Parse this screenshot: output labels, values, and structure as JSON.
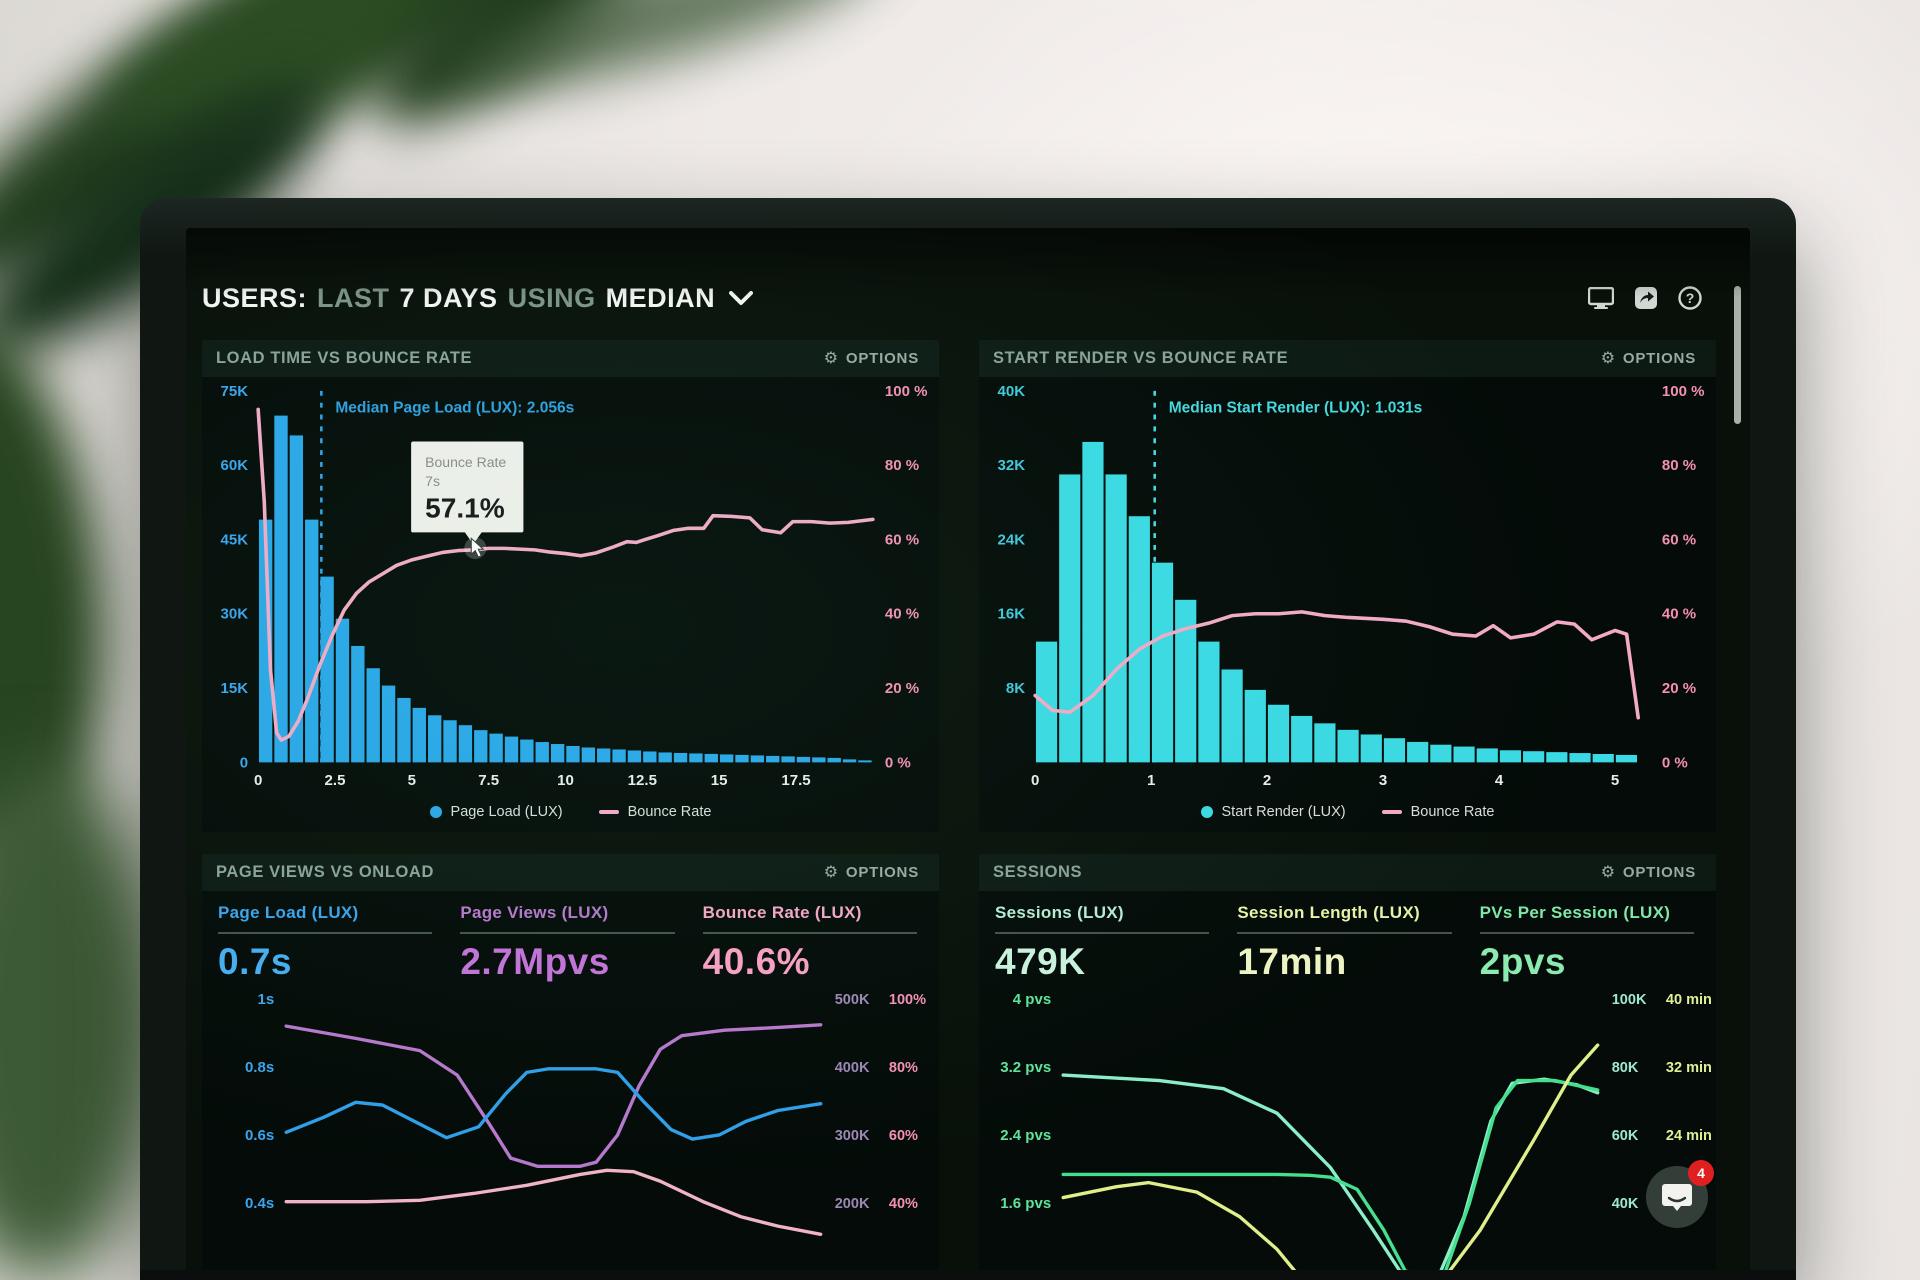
{
  "header": {
    "t1": "USERS:",
    "t2": "LAST",
    "t3": "7 DAYS",
    "t4": "USING",
    "t5": "MEDIAN",
    "icons": [
      "display-icon",
      "share-icon",
      "help-icon"
    ]
  },
  "chat": {
    "badge": "4"
  },
  "colors": {
    "blue_bar": "#2aa7e8",
    "cyan_bar": "#3bd9e3",
    "pink_line": "#f2aac6",
    "axis_pink": "#f58fb5",
    "axis_blue": "#3ba4ec",
    "axis_cyan": "#41c6dc",
    "tick_white": "#e9edeb"
  },
  "charts": [
    {
      "type": "histogram",
      "title": "LOAD TIME VS BOUNCE RATE",
      "options_label": "OPTIONS",
      "bar_color": "#2aa7e8",
      "line_color": "#f2aac6",
      "axis_left_color": "#3ba4ec",
      "axis_right_color": "#f58fb5",
      "median_color": "#2f9fe0",
      "y_max": 75,
      "x_max": 20,
      "bin_width": 0.5,
      "y_left_ticks": [
        "75K",
        "60K",
        "45K",
        "30K",
        "15K",
        "0"
      ],
      "y_right_ticks": [
        "100 %",
        "80 %",
        "60 %",
        "40 %",
        "20 %",
        "0 %"
      ],
      "x_ticks": [
        0,
        2.5,
        5,
        7.5,
        10,
        12.5,
        15,
        17.5
      ],
      "bars": [
        49,
        70,
        66,
        49,
        37.5,
        29,
        23.5,
        19,
        15.5,
        13,
        11,
        9.5,
        8.5,
        7.5,
        6.5,
        5.8,
        5.2,
        4.6,
        4.1,
        3.7,
        3.3,
        3.0,
        2.8,
        2.6,
        2.4,
        2.2,
        2.0,
        1.9,
        1.8,
        1.7,
        1.6,
        1.5,
        1.4,
        1.3,
        1.2,
        1.1,
        1.0,
        0.9,
        0.6,
        0.4
      ],
      "line_points": [
        [
          0,
          95
        ],
        [
          0.2,
          70
        ],
        [
          0.4,
          25
        ],
        [
          0.6,
          8
        ],
        [
          0.75,
          6
        ],
        [
          1,
          7
        ],
        [
          1.3,
          11
        ],
        [
          1.6,
          17
        ],
        [
          2,
          26
        ],
        [
          2.4,
          34
        ],
        [
          2.8,
          41
        ],
        [
          3.2,
          45.5
        ],
        [
          3.6,
          48.5
        ],
        [
          4,
          50.5
        ],
        [
          4.5,
          53
        ],
        [
          5,
          54.5
        ],
        [
          5.5,
          55.5
        ],
        [
          6,
          56.5
        ],
        [
          6.5,
          57
        ],
        [
          7,
          57.2
        ],
        [
          7.5,
          57.6
        ],
        [
          8,
          57.6
        ],
        [
          8.5,
          57.4
        ],
        [
          9,
          57.2
        ],
        [
          9.5,
          56.6
        ],
        [
          10,
          56.2
        ],
        [
          10.5,
          55.6
        ],
        [
          11,
          56.4
        ],
        [
          11.5,
          57.8
        ],
        [
          12,
          59.4
        ],
        [
          12.3,
          59.2
        ],
        [
          12.6,
          60
        ],
        [
          13,
          61
        ],
        [
          13.5,
          62.4
        ],
        [
          14,
          63
        ],
        [
          14.5,
          63
        ],
        [
          14.8,
          66.4
        ],
        [
          15.4,
          66.2
        ],
        [
          16,
          65.8
        ],
        [
          16.4,
          62.6
        ],
        [
          17,
          61.8
        ],
        [
          17.4,
          64.8
        ],
        [
          18,
          64.8
        ],
        [
          18.6,
          64.4
        ],
        [
          19.2,
          64.6
        ],
        [
          20,
          65.4
        ]
      ],
      "median": {
        "x": 2.056,
        "label": "Median Page Load (LUX): 2.056s"
      },
      "tooltip": {
        "title": "Bounce Rate",
        "sub": "7s",
        "value": "57.1%",
        "x": 7,
        "pct": 57.1
      },
      "legend": [
        {
          "swatch": "dot",
          "color": "#2aa7e8",
          "label": "Page Load (LUX)"
        },
        {
          "swatch": "line",
          "color": "#f2aac6",
          "label": "Bounce Rate"
        }
      ]
    },
    {
      "type": "histogram",
      "title": "START RENDER VS BOUNCE RATE",
      "options_label": "OPTIONS",
      "bar_color": "#3bd9e3",
      "line_color": "#f2aac6",
      "axis_left_color": "#41c6dc",
      "axis_right_color": "#f58fb5",
      "median_color": "#46d7de",
      "y_max": 40,
      "x_max": 5.3,
      "bin_width": 0.2,
      "y_left_ticks": [
        "40K",
        "32K",
        "24K",
        "16K",
        "8K",
        ""
      ],
      "y_right_ticks": [
        "100 %",
        "80 %",
        "60 %",
        "40 %",
        "20 %",
        "0 %"
      ],
      "x_ticks": [
        0,
        1,
        2,
        3,
        4,
        5
      ],
      "bars": [
        13,
        31,
        34.5,
        31,
        26.5,
        21.5,
        17.5,
        13,
        10,
        7.8,
        6.2,
        5,
        4.2,
        3.5,
        3,
        2.6,
        2.2,
        1.9,
        1.7,
        1.5,
        1.3,
        1.2,
        1.1,
        1.0,
        0.9,
        0.8
      ],
      "line_points": [
        [
          0,
          18
        ],
        [
          0.15,
          14
        ],
        [
          0.3,
          13.5
        ],
        [
          0.5,
          18
        ],
        [
          0.7,
          25
        ],
        [
          0.9,
          30.5
        ],
        [
          1.1,
          34
        ],
        [
          1.3,
          36
        ],
        [
          1.5,
          37.5
        ],
        [
          1.7,
          39.5
        ],
        [
          1.9,
          40
        ],
        [
          2.1,
          40
        ],
        [
          2.3,
          40.5
        ],
        [
          2.5,
          39.5
        ],
        [
          2.7,
          39
        ],
        [
          3,
          38.5
        ],
        [
          3.2,
          38
        ],
        [
          3.4,
          36.5
        ],
        [
          3.6,
          34.5
        ],
        [
          3.8,
          34
        ],
        [
          3.95,
          36.8
        ],
        [
          4.1,
          33.5
        ],
        [
          4.3,
          34.5
        ],
        [
          4.5,
          37.8
        ],
        [
          4.65,
          37.2
        ],
        [
          4.8,
          33
        ],
        [
          5,
          35.5
        ],
        [
          5.1,
          34.5
        ],
        [
          5.2,
          12
        ]
      ],
      "median": {
        "x": 1.031,
        "label": "Median Start Render (LUX): 1.031s"
      },
      "legend": [
        {
          "swatch": "dot",
          "color": "#3bd9e3",
          "label": "Start Render (LUX)"
        },
        {
          "swatch": "line",
          "color": "#f2aac6",
          "label": "Bounce Rate"
        }
      ]
    },
    {
      "type": "lines",
      "title": "PAGE VIEWS VS ONLOAD",
      "options_label": "OPTIONS",
      "metrics": [
        {
          "label": "Page Load (LUX)",
          "value": "0.7s",
          "label_color": "#3ba4ec",
          "value_color": "#46aef0"
        },
        {
          "label": "Page Views (LUX)",
          "value": "2.7Mpvs",
          "label_color": "#b678cc",
          "value_color": "#c272d8"
        },
        {
          "label": "Bounce Rate (LUX)",
          "value": "40.6%",
          "label_color": "#f4a6c4",
          "value_color": "#f79fc3"
        }
      ],
      "left_ticks": [
        "1s",
        "0.8s",
        "0.6s",
        "0.4s"
      ],
      "left_tick_color": "#3ba4ec",
      "right_ticks": [
        [
          "500K",
          "100%"
        ],
        [
          "400K",
          "80%"
        ],
        [
          "300K",
          "60%"
        ],
        [
          "200K",
          "40%"
        ]
      ],
      "right_tick_colors": [
        "#9d87b5",
        "#f48fb6"
      ],
      "series": [
        {
          "name": "page-views",
          "color": "#b678cc",
          "points": [
            [
              0,
              0.1
            ],
            [
              0.13,
              0.145
            ],
            [
              0.25,
              0.19
            ],
            [
              0.32,
              0.28
            ],
            [
              0.38,
              0.46
            ],
            [
              0.42,
              0.585
            ],
            [
              0.47,
              0.615
            ],
            [
              0.55,
              0.615
            ],
            [
              0.58,
              0.6
            ],
            [
              0.62,
              0.5
            ],
            [
              0.66,
              0.32
            ],
            [
              0.7,
              0.185
            ],
            [
              0.74,
              0.135
            ],
            [
              0.82,
              0.115
            ],
            [
              0.92,
              0.105
            ],
            [
              1,
              0.095
            ]
          ]
        },
        {
          "name": "page-load",
          "color": "#2f9fe8",
          "points": [
            [
              0,
              0.49
            ],
            [
              0.07,
              0.435
            ],
            [
              0.13,
              0.38
            ],
            [
              0.18,
              0.39
            ],
            [
              0.24,
              0.45
            ],
            [
              0.3,
              0.51
            ],
            [
              0.36,
              0.47
            ],
            [
              0.41,
              0.35
            ],
            [
              0.45,
              0.27
            ],
            [
              0.49,
              0.257
            ],
            [
              0.58,
              0.257
            ],
            [
              0.62,
              0.27
            ],
            [
              0.67,
              0.38
            ],
            [
              0.72,
              0.48
            ],
            [
              0.76,
              0.515
            ],
            [
              0.81,
              0.5
            ],
            [
              0.86,
              0.45
            ],
            [
              0.92,
              0.41
            ],
            [
              1,
              0.385
            ]
          ]
        },
        {
          "name": "bounce-rate",
          "color": "#f0b4c6",
          "points": [
            [
              0,
              0.745
            ],
            [
              0.15,
              0.745
            ],
            [
              0.25,
              0.74
            ],
            [
              0.35,
              0.715
            ],
            [
              0.45,
              0.685
            ],
            [
              0.55,
              0.645
            ],
            [
              0.6,
              0.63
            ],
            [
              0.65,
              0.635
            ],
            [
              0.7,
              0.67
            ],
            [
              0.78,
              0.745
            ],
            [
              0.85,
              0.8
            ],
            [
              0.92,
              0.835
            ],
            [
              1,
              0.865
            ]
          ]
        }
      ]
    },
    {
      "type": "lines",
      "title": "SESSIONS",
      "options_label": "OPTIONS",
      "metrics": [
        {
          "label": "Sessions (LUX)",
          "value": "479K",
          "label_color": "#b7ecd4",
          "value_color": "#c9f2dd"
        },
        {
          "label": "Session Length (LUX)",
          "value": "17min",
          "label_color": "#e7f2a6",
          "value_color": "#eef3c2"
        },
        {
          "label": "PVs Per Session (LUX)",
          "value": "2pvs",
          "label_color": "#7fe8a8",
          "value_color": "#8aeab0"
        }
      ],
      "left_ticks": [
        "4 pvs",
        "3.2 pvs",
        "2.4 pvs",
        "1.6 pvs"
      ],
      "left_tick_color": "#5fe39a",
      "right_ticks": [
        [
          "100K",
          "40 min"
        ],
        [
          "80K",
          "32 min"
        ],
        [
          "60K",
          "24 min"
        ],
        [
          "40K",
          ""
        ]
      ],
      "right_tick_colors": [
        "#9fe8cd",
        "#dff095"
      ],
      "series": [
        {
          "name": "sessions",
          "color": "#8ceec9",
          "points": [
            [
              0,
              0.28
            ],
            [
              0.18,
              0.3
            ],
            [
              0.3,
              0.33
            ],
            [
              0.4,
              0.42
            ],
            [
              0.5,
              0.62
            ],
            [
              0.58,
              0.85
            ],
            [
              0.63,
              1.0
            ],
            [
              0.7,
              1.03
            ],
            [
              0.75,
              0.8
            ],
            [
              0.8,
              0.45
            ],
            [
              0.84,
              0.31
            ],
            [
              0.9,
              0.295
            ],
            [
              0.96,
              0.315
            ],
            [
              1,
              0.345
            ]
          ]
        },
        {
          "name": "pvs-per-session",
          "color": "#44e08e",
          "points": [
            [
              0,
              0.645
            ],
            [
              0.4,
              0.645
            ],
            [
              0.46,
              0.648
            ],
            [
              0.5,
              0.655
            ],
            [
              0.55,
              0.7
            ],
            [
              0.6,
              0.85
            ],
            [
              0.64,
              1.0
            ],
            [
              0.71,
              1.03
            ],
            [
              0.76,
              0.75
            ],
            [
              0.81,
              0.4
            ],
            [
              0.85,
              0.3
            ],
            [
              0.92,
              0.3
            ],
            [
              1,
              0.335
            ]
          ]
        },
        {
          "name": "session-length",
          "color": "#e0ef8a",
          "points": [
            [
              0,
              0.73
            ],
            [
              0.1,
              0.69
            ],
            [
              0.16,
              0.675
            ],
            [
              0.25,
              0.71
            ],
            [
              0.33,
              0.8
            ],
            [
              0.4,
              0.92
            ],
            [
              0.45,
              1.04
            ],
            [
              0.7,
              1.06
            ],
            [
              0.78,
              0.85
            ],
            [
              0.88,
              0.52
            ],
            [
              0.95,
              0.28
            ],
            [
              1,
              0.17
            ]
          ]
        }
      ]
    }
  ]
}
